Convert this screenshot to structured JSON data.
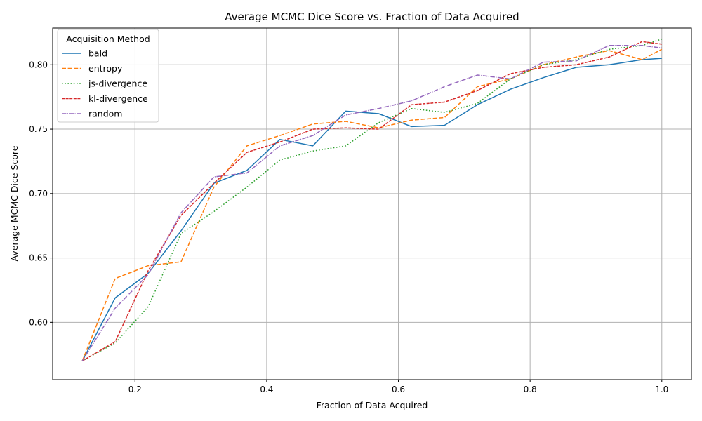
{
  "chart_data": {
    "type": "line",
    "title": "Average MCMC Dice Score vs. Fraction of Data Acquired",
    "xlabel": "Fraction of Data Acquired",
    "ylabel": "Average MCMC Dice Score",
    "xlim": [
      0.075,
      1.045
    ],
    "ylim": [
      0.5555,
      0.8285
    ],
    "xticks": [
      0.2,
      0.4,
      0.6,
      0.8,
      1.0
    ],
    "xtick_labels": [
      "0.2",
      "0.4",
      "0.6",
      "0.8",
      "1.0"
    ],
    "yticks": [
      0.6,
      0.65,
      0.7,
      0.75,
      0.8
    ],
    "ytick_labels": [
      "0.60",
      "0.65",
      "0.70",
      "0.75",
      "0.80"
    ],
    "grid": true,
    "legend": {
      "title": "Acquisition Method",
      "placement": "top-left"
    },
    "x": [
      0.12,
      0.17,
      0.22,
      0.27,
      0.32,
      0.37,
      0.42,
      0.47,
      0.52,
      0.57,
      0.62,
      0.67,
      0.72,
      0.77,
      0.82,
      0.87,
      0.92,
      0.97,
      1.0
    ],
    "series": [
      {
        "name": "bald",
        "color": "#1f77b4",
        "dash": "solid",
        "values": [
          0.57,
          0.619,
          0.638,
          0.671,
          0.708,
          0.718,
          0.742,
          0.737,
          0.764,
          0.762,
          0.752,
          0.753,
          0.769,
          0.781,
          0.79,
          0.798,
          0.8,
          0.804,
          0.805
        ]
      },
      {
        "name": "entropy",
        "color": "#ff7f0e",
        "dash": "dashed",
        "values": [
          0.57,
          0.634,
          0.644,
          0.647,
          0.705,
          0.737,
          0.745,
          0.754,
          0.756,
          0.751,
          0.757,
          0.759,
          0.783,
          0.789,
          0.8,
          0.806,
          0.811,
          0.804,
          0.812
        ]
      },
      {
        "name": "js-divergence",
        "color": "#2ca02c",
        "dash": "dotted",
        "values": [
          0.57,
          0.584,
          0.612,
          0.669,
          0.686,
          0.705,
          0.726,
          0.733,
          0.737,
          0.755,
          0.766,
          0.763,
          0.77,
          0.789,
          0.8,
          0.804,
          0.812,
          0.815,
          0.82
        ]
      },
      {
        "name": "kl-divergence",
        "color": "#d62728",
        "dash": "dashdot-short",
        "values": [
          0.57,
          0.585,
          0.64,
          0.683,
          0.708,
          0.732,
          0.74,
          0.75,
          0.751,
          0.75,
          0.769,
          0.771,
          0.78,
          0.793,
          0.798,
          0.8,
          0.806,
          0.818,
          0.816
        ]
      },
      {
        "name": "random",
        "color": "#9467bd",
        "dash": "dashdot",
        "values": [
          0.57,
          0.611,
          0.637,
          0.685,
          0.713,
          0.716,
          0.737,
          0.745,
          0.761,
          0.766,
          0.772,
          0.783,
          0.792,
          0.789,
          0.802,
          0.803,
          0.815,
          0.815,
          0.813
        ]
      }
    ]
  }
}
